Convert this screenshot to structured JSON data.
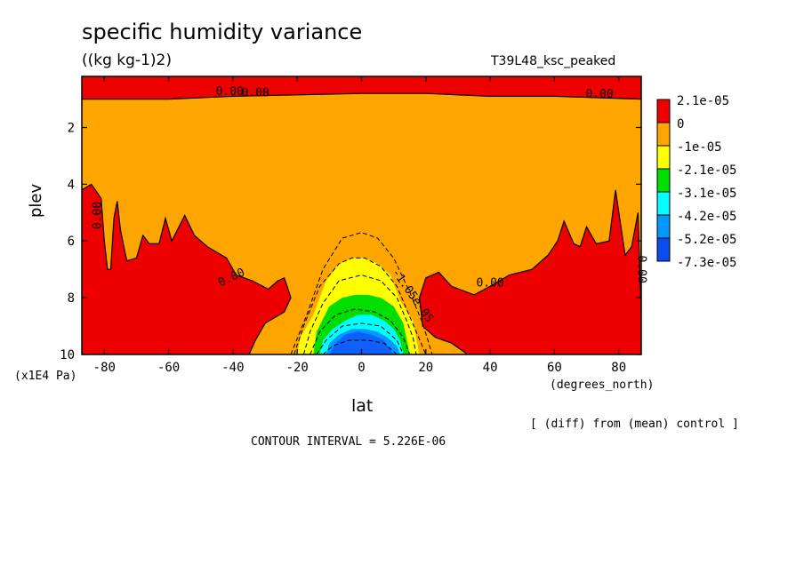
{
  "chart_data": {
    "type": "contour",
    "title": "specific humidity variance",
    "units": "((kg kg-1)2)",
    "run_name": "T39L48_ksc_peaked",
    "xlabel": "lat",
    "xunits": "(degrees_north)",
    "ylabel": "plev",
    "yunits": "(x1E4 Pa)",
    "xlim": [
      -87,
      87
    ],
    "ylim": [
      10,
      0.2
    ],
    "x_ticks": [
      -80,
      -60,
      -40,
      -20,
      0,
      20,
      40,
      60,
      80
    ],
    "y_ticks": [
      2,
      4,
      6,
      8,
      10
    ],
    "note": "[ (diff) from (mean) control ]",
    "contour_interval": "CONTOUR INTERVAL = 5.226E-06",
    "contour_labels": [
      "0.00",
      "0.00",
      "0.00",
      "0.00",
      "0.00",
      "0.00",
      "0.00",
      "-1.05e-05"
    ],
    "legend": [
      {
        "label": "2.1e-05",
        "color": "#ee0000"
      },
      {
        "label": "0",
        "color": "#ffa500"
      },
      {
        "label": "-1e-05",
        "color": "#ffff00"
      },
      {
        "label": "-2.1e-05",
        "color": "#00dd00"
      },
      {
        "label": "-3.1e-05",
        "color": "#00ffff"
      },
      {
        "label": "-4.2e-05",
        "color": "#0099ff"
      },
      {
        "label": "-5.2e-05",
        "color": "#1060ff"
      },
      {
        "label": "-7.3e-05",
        "color": ""
      }
    ],
    "regions": {
      "top_red_boundary": [
        [
          -87,
          1.0
        ],
        [
          -60,
          1.0
        ],
        [
          -40,
          0.9
        ],
        [
          -20,
          0.85
        ],
        [
          0,
          0.8
        ],
        [
          20,
          0.8
        ],
        [
          40,
          0.9
        ],
        [
          60,
          0.9
        ],
        [
          87,
          1.0
        ]
      ],
      "left_red": [
        [
          -87,
          10
        ],
        [
          -87,
          4.2
        ],
        [
          -84,
          4.0
        ],
        [
          -81,
          4.5
        ],
        [
          -80,
          6
        ],
        [
          -79,
          7.0
        ],
        [
          -78,
          7.0
        ],
        [
          -77,
          5.2
        ],
        [
          -76,
          4.6
        ],
        [
          -75,
          5.6
        ],
        [
          -73,
          6.7
        ],
        [
          -70,
          6.6
        ],
        [
          -68,
          5.8
        ],
        [
          -66,
          6.1
        ],
        [
          -63,
          6.1
        ],
        [
          -61,
          5.2
        ],
        [
          -59,
          6.0
        ],
        [
          -55,
          5.1
        ],
        [
          -52,
          5.8
        ],
        [
          -48,
          6.2
        ],
        [
          -42,
          6.6
        ],
        [
          -39,
          7.2
        ],
        [
          -34,
          7.4
        ],
        [
          -29,
          7.7
        ],
        [
          -26,
          7.4
        ],
        [
          -24,
          7.3
        ],
        [
          -22,
          8.0
        ],
        [
          -24,
          8.5
        ],
        [
          -30,
          8.9
        ],
        [
          -33,
          9.5
        ],
        [
          -35,
          10
        ]
      ],
      "right_red": [
        [
          87,
          10
        ],
        [
          87,
          8.5
        ],
        [
          86,
          5.0
        ],
        [
          84,
          6.2
        ],
        [
          82,
          6.5
        ],
        [
          79,
          4.2
        ],
        [
          77,
          6.0
        ],
        [
          73,
          6.1
        ],
        [
          70,
          5.5
        ],
        [
          68,
          6.2
        ],
        [
          66,
          6.1
        ],
        [
          63,
          5.3
        ],
        [
          61,
          6.0
        ],
        [
          58,
          6.5
        ],
        [
          53,
          7.0
        ],
        [
          46,
          7.2
        ],
        [
          40,
          7.6
        ],
        [
          35,
          7.9
        ],
        [
          28,
          7.6
        ],
        [
          24,
          7.1
        ],
        [
          20,
          7.3
        ],
        [
          18,
          8.0
        ],
        [
          19,
          9.0
        ],
        [
          23,
          9.4
        ],
        [
          28,
          9.6
        ],
        [
          33,
          10
        ]
      ],
      "yellow": [
        [
          -20,
          10
        ],
        [
          -19,
          9.4
        ],
        [
          -15,
          8.6
        ],
        [
          -11,
          7.4
        ],
        [
          -7,
          6.8
        ],
        [
          -3,
          6.6
        ],
        [
          1,
          6.6
        ],
        [
          5,
          6.8
        ],
        [
          9,
          7.2
        ],
        [
          12,
          8.1
        ],
        [
          16,
          8.8
        ],
        [
          18,
          10
        ]
      ],
      "green": [
        [
          -15,
          10
        ],
        [
          -14,
          9.2
        ],
        [
          -10,
          8.3
        ],
        [
          -6,
          8.0
        ],
        [
          -2,
          7.9
        ],
        [
          2,
          7.9
        ],
        [
          6,
          8.0
        ],
        [
          10,
          8.3
        ],
        [
          13,
          8.9
        ],
        [
          15,
          10
        ]
      ],
      "cyan": [
        [
          -13,
          10
        ],
        [
          -12,
          9.5
        ],
        [
          -9,
          9.1
        ],
        [
          -5,
          8.8
        ],
        [
          -1,
          8.6
        ],
        [
          3,
          8.6
        ],
        [
          7,
          8.8
        ],
        [
          10,
          9.1
        ],
        [
          12,
          9.5
        ],
        [
          13,
          10
        ]
      ],
      "light_blue": [
        [
          -11,
          10
        ],
        [
          -10,
          9.6
        ],
        [
          -7,
          9.3
        ],
        [
          -3,
          9.1
        ],
        [
          1,
          9.1
        ],
        [
          5,
          9.2
        ],
        [
          8,
          9.4
        ],
        [
          11,
          9.7
        ],
        [
          12,
          10
        ]
      ],
      "dark_blue": [
        [
          -10,
          10
        ],
        [
          -8,
          9.6
        ],
        [
          -5,
          9.3
        ],
        [
          -1,
          9.2
        ],
        [
          3,
          9.3
        ],
        [
          7,
          9.5
        ],
        [
          10,
          10
        ]
      ]
    }
  }
}
